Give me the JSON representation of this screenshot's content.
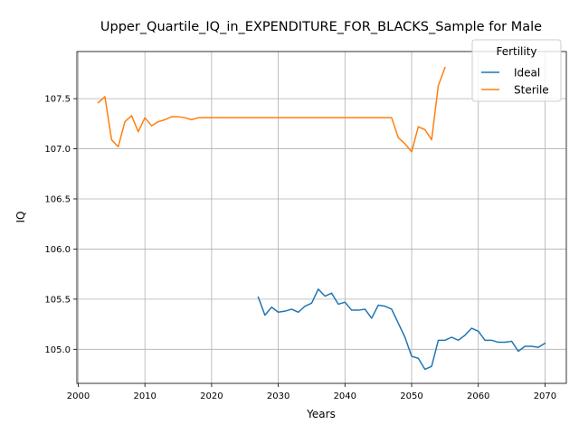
{
  "chart_data": {
    "type": "line",
    "title": "Upper_Quartile_IQ_in_EXPENDITURE_FOR_BLACKS_Sample for Male",
    "xlabel": "Years",
    "ylabel": "IQ",
    "xlim": [
      1999.8,
      2073.2
    ],
    "ylim": [
      104.66,
      107.97
    ],
    "xticks": [
      2000,
      2010,
      2020,
      2030,
      2040,
      2050,
      2060,
      2070
    ],
    "yticks": [
      105.0,
      105.5,
      106.0,
      106.5,
      107.0,
      107.5
    ],
    "xtick_labels": [
      "2000",
      "2010",
      "2020",
      "2030",
      "2040",
      "2050",
      "2060",
      "2070"
    ],
    "ytick_labels": [
      "105.0",
      "105.5",
      "106.0",
      "106.5",
      "107.0",
      "107.5"
    ],
    "grid": true,
    "legend": {
      "title": "Fertility",
      "placement": "top-right"
    },
    "series": [
      {
        "name": "Ideal",
        "color": "#1f77b4",
        "x": [
          2027,
          2028,
          2029,
          2030,
          2031,
          2032,
          2033,
          2034,
          2035,
          2036,
          2037,
          2038,
          2039,
          2040,
          2041,
          2042,
          2043,
          2044,
          2045,
          2046,
          2047,
          2048,
          2049,
          2050,
          2051,
          2052,
          2053,
          2054,
          2055,
          2056,
          2057,
          2058,
          2059,
          2060,
          2061,
          2062,
          2063,
          2064,
          2065,
          2066,
          2067,
          2068,
          2069,
          2070
        ],
        "y": [
          105.52,
          105.34,
          105.42,
          105.37,
          105.38,
          105.4,
          105.37,
          105.43,
          105.46,
          105.6,
          105.53,
          105.56,
          105.45,
          105.47,
          105.39,
          105.39,
          105.4,
          105.31,
          105.44,
          105.43,
          105.4,
          105.26,
          105.12,
          104.93,
          104.91,
          104.8,
          104.83,
          105.09,
          105.09,
          105.12,
          105.09,
          105.14,
          105.21,
          105.18,
          105.09,
          105.09,
          105.07,
          105.07,
          105.08,
          104.98,
          105.03,
          105.03,
          105.02,
          105.06
        ]
      },
      {
        "name": "Sterile",
        "color": "#ff7f0e",
        "x": [
          2003,
          2004,
          2005,
          2006,
          2007,
          2008,
          2009,
          2010,
          2011,
          2012,
          2013,
          2014,
          2015,
          2016,
          2017,
          2018,
          2019,
          2020,
          2021,
          2022,
          2023,
          2024,
          2025,
          2026,
          2027,
          2028,
          2029,
          2030,
          2031,
          2032,
          2033,
          2034,
          2035,
          2036,
          2037,
          2038,
          2039,
          2040,
          2041,
          2042,
          2043,
          2044,
          2045,
          2046,
          2047,
          2048,
          2049,
          2050,
          2051,
          2052,
          2053,
          2054,
          2055
        ],
        "y": [
          107.46,
          107.52,
          107.09,
          107.02,
          107.27,
          107.33,
          107.17,
          107.31,
          107.23,
          107.27,
          107.29,
          107.32,
          107.32,
          107.31,
          107.29,
          107.31,
          107.31,
          107.31,
          107.31,
          107.31,
          107.31,
          107.31,
          107.31,
          107.31,
          107.31,
          107.31,
          107.31,
          107.31,
          107.31,
          107.31,
          107.31,
          107.31,
          107.31,
          107.31,
          107.31,
          107.31,
          107.31,
          107.31,
          107.31,
          107.31,
          107.31,
          107.31,
          107.31,
          107.31,
          107.31,
          107.11,
          107.05,
          106.97,
          107.22,
          107.19,
          107.09,
          107.63,
          107.81
        ]
      }
    ]
  }
}
